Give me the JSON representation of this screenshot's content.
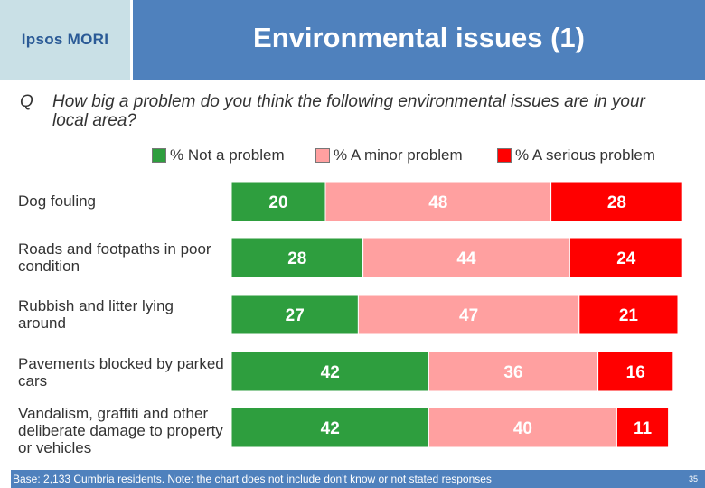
{
  "header": {
    "logo": "Ipsos MORI",
    "title": "Environmental issues (1)"
  },
  "question": {
    "letter": "Q",
    "text": "How big a problem do you think the following environmental issues are in your local area?"
  },
  "footer": {
    "note": "Base: 2,133 Cumbria residents. Note: the chart does not include don't know or not stated responses",
    "page": "35"
  },
  "colors": {
    "not_a_problem": "#2e9e3e",
    "minor_problem": "#ffa0a0",
    "serious_problem": "#ff0000",
    "header": "#4f81bd"
  },
  "chart_data": {
    "type": "bar",
    "orientation": "horizontal",
    "stacked": true,
    "categories": [
      "Dog fouling",
      "Roads and footpaths in poor condition",
      "Rubbish and litter lying around",
      "Pavements blocked by parked cars",
      "Vandalism, graffiti and other deliberate damage to property or vehicles"
    ],
    "series": [
      {
        "name": "% Not a problem",
        "values": [
          20,
          28,
          27,
          42,
          42
        ]
      },
      {
        "name": "% A minor problem",
        "values": [
          48,
          44,
          47,
          36,
          40
        ]
      },
      {
        "name": "% A serious problem",
        "values": [
          28,
          24,
          21,
          16,
          11
        ]
      }
    ],
    "legend": "top",
    "unit": "%"
  }
}
